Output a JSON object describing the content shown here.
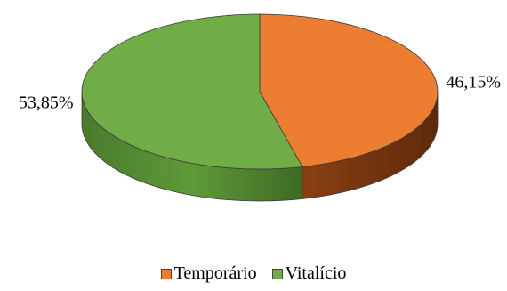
{
  "chart_data": {
    "type": "pie",
    "title": "",
    "categories": [
      "Temporário",
      "Vitalício"
    ],
    "values": [
      46.15,
      53.85
    ],
    "labels": [
      "46,15%",
      "53,85%"
    ],
    "colors": [
      "#ED7D31",
      "#70AD47"
    ],
    "legend_position": "bottom",
    "style": "3d"
  }
}
